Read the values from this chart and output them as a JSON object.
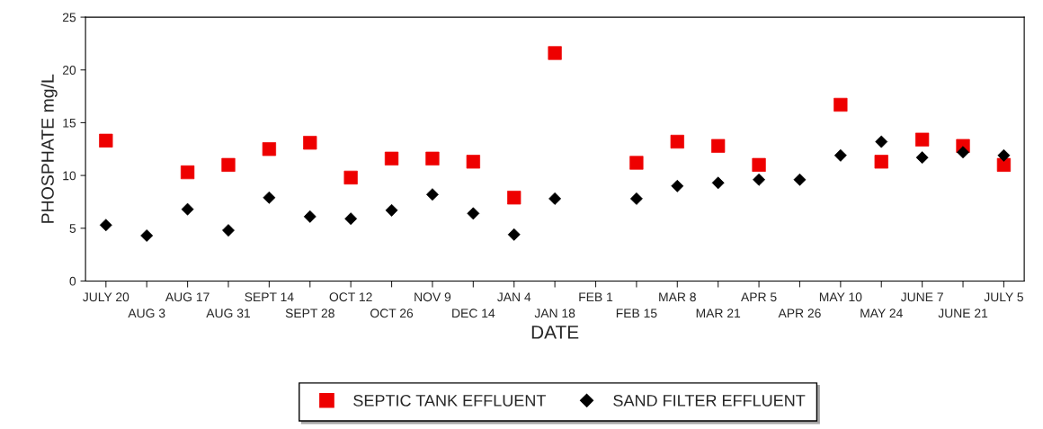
{
  "chart_data": {
    "type": "scatter",
    "xlabel": "DATE",
    "ylabel": "PHOSPHATE mg/L",
    "categories": [
      "JULY 20",
      "AUG 3",
      "AUG 17",
      "AUG 31",
      "SEPT 14",
      "SEPT 28",
      "OCT 12",
      "OCT 26",
      "NOV 9",
      "DEC 14",
      "JAN 4",
      "JAN 18",
      "FEB 1",
      "FEB 15",
      "MAR 8",
      "MAR 21",
      "APR 5",
      "APR 26",
      "MAY 10",
      "MAY 24",
      "JUNE 7",
      "JUNE 21",
      "JULY 5"
    ],
    "series": [
      {
        "name": "SEPTIC TANK EFFLUENT",
        "color": "#ee0000",
        "marker": "square",
        "values": [
          13.3,
          null,
          10.3,
          11.0,
          12.5,
          13.1,
          9.8,
          11.6,
          11.6,
          11.3,
          7.9,
          21.6,
          null,
          11.2,
          13.2,
          12.8,
          11.0,
          null,
          16.7,
          11.3,
          13.4,
          12.8,
          11.0
        ]
      },
      {
        "name": "SAND FILTER EFFLUENT",
        "color": "#000000",
        "marker": "diamond",
        "values": [
          5.3,
          4.3,
          6.8,
          4.8,
          7.9,
          6.1,
          5.9,
          6.7,
          8.2,
          6.4,
          4.4,
          7.8,
          null,
          7.8,
          9.0,
          9.3,
          9.6,
          9.6,
          11.9,
          13.2,
          11.7,
          12.2,
          11.9
        ]
      }
    ],
    "ylim": [
      0,
      25
    ],
    "yticks": [
      0,
      5,
      10,
      15,
      20,
      25
    ],
    "grid": false,
    "legend": "bottom"
  }
}
